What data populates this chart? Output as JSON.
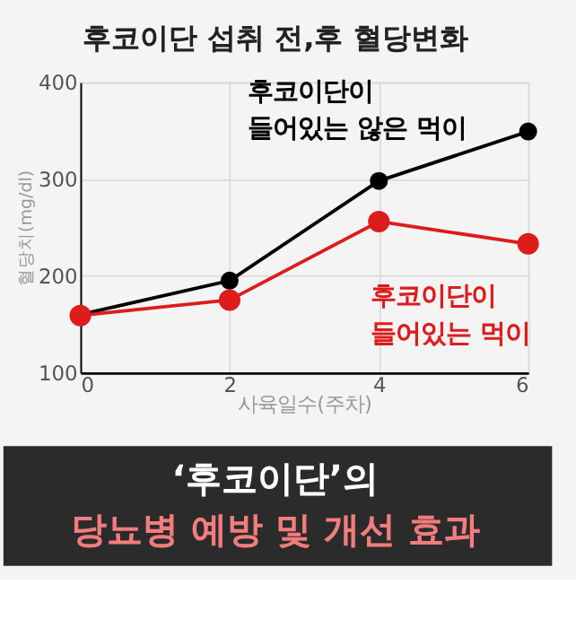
{
  "chart_data": {
    "type": "line",
    "title": "후코이단 섭취 전,후 혈당변화",
    "xlabel": "사육일수(주차)",
    "ylabel": "혈당치(mg/dl)",
    "x": [
      0,
      2,
      4,
      6
    ],
    "series": [
      {
        "name": "후코이단이 들어있는 않은 먹이",
        "color": "#000000",
        "values": [
          160,
          195,
          298,
          349
        ]
      },
      {
        "name": "후코이단이 들어있는 먹이",
        "color": "#dd1c1c",
        "values": [
          159,
          175,
          256,
          233
        ]
      }
    ],
    "xlim": [
      0,
      6
    ],
    "xticks": [
      0,
      2,
      4,
      6
    ],
    "ylim": [
      100,
      400
    ],
    "yticks": [
      100,
      200,
      300,
      400
    ],
    "grid": true,
    "marker": "circle",
    "line_style": "solid",
    "annotations": [
      "‘후코이단’의",
      "당뇨병 예방 및 개선 효과"
    ]
  }
}
